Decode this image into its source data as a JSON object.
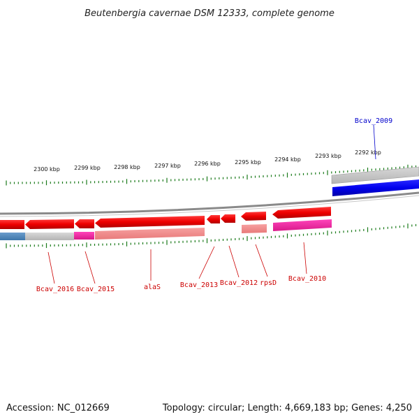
{
  "title": "Beutenbergia cavernae DSM 12333, complete genome",
  "footer": {
    "accession": "Accession: NC_012669",
    "info": "Topology: circular; Length: 4,669,183 bp; Genes: 4,250"
  },
  "scale_labels": [
    "2300 kbp",
    "2299 kbp",
    "2298 kbp",
    "2297 kbp",
    "2296 kbp",
    "2295 kbp",
    "2294 kbp",
    "2293 kbp",
    "2292 kbp"
  ],
  "genes": [
    {
      "name": "Bcav_2016",
      "color": "#cc0000"
    },
    {
      "name": "Bcav_2015",
      "color": "#cc0000"
    },
    {
      "name": "alaS",
      "color": "#cc0000"
    },
    {
      "name": "Bcav_2013",
      "color": "#cc0000"
    },
    {
      "name": "Bcav_2012",
      "color": "#cc0000"
    },
    {
      "name": "rpsD",
      "color": "#cc0000"
    },
    {
      "name": "Bcav_2010",
      "color": "#cc0000"
    },
    {
      "name": "Bcav_2009",
      "color": "#0000cc"
    }
  ],
  "colors": {
    "forward_gene": "#0000ff",
    "reverse_gene": "#ff0000",
    "tick": "#1a7a1a",
    "backbone": "#8a8a8a"
  }
}
